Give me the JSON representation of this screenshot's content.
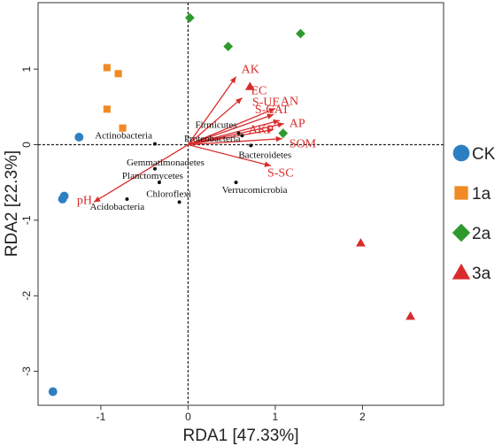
{
  "colors": {
    "CK": "#2e7fc2",
    "1a": "#f08a24",
    "2a": "#2e9a2e",
    "3a": "#d92b2b",
    "arrow": "#d92b2b",
    "species": "#111111"
  },
  "chart_data": {
    "type": "scatter",
    "title": "",
    "xlabel": "RDA1  [47.33%]",
    "ylabel": "RDA2  [22.3%]",
    "xlim": [
      -1.72,
      2.93
    ],
    "ylim": [
      -3.45,
      1.88
    ],
    "xticks": [
      -1,
      0,
      1,
      2
    ],
    "yticks": [
      -3,
      -2,
      -1,
      0,
      1
    ],
    "grid": false,
    "reference_lines": [
      "x=0",
      "y=0"
    ],
    "legend_position": "right",
    "samples": [
      {
        "name": "CK",
        "marker": "circle",
        "points": [
          [
            -1.25,
            0.1
          ],
          [
            -1.42,
            -0.68
          ],
          [
            -1.44,
            -0.72
          ],
          [
            -1.55,
            -3.27
          ]
        ]
      },
      {
        "name": "1a",
        "marker": "square",
        "points": [
          [
            -0.93,
            1.02
          ],
          [
            -0.8,
            0.94
          ],
          [
            -0.93,
            0.47
          ],
          [
            -0.75,
            0.22
          ]
        ]
      },
      {
        "name": "2a",
        "marker": "diamond",
        "points": [
          [
            0.02,
            1.68
          ],
          [
            0.46,
            1.3
          ],
          [
            1.29,
            1.47
          ],
          [
            1.09,
            0.15
          ]
        ]
      },
      {
        "name": "3a",
        "marker": "triangle",
        "points": [
          [
            1.98,
            -1.3
          ],
          [
            2.55,
            -2.27
          ],
          [
            0.71,
            0.77
          ]
        ]
      }
    ],
    "env_vectors": [
      {
        "label": "AK",
        "x": 0.55,
        "y": 0.9
      },
      {
        "label": "EC",
        "x": 0.62,
        "y": 0.62
      },
      {
        "label": "S-UE",
        "x": 0.98,
        "y": 0.4
      },
      {
        "label": "AN",
        "x": 1.0,
        "y": 0.48
      },
      {
        "label": "S-CAT",
        "x": 1.05,
        "y": 0.32
      },
      {
        "label": "AP",
        "x": 1.1,
        "y": 0.28
      },
      {
        "label": "AKP",
        "x": 0.98,
        "y": 0.2
      },
      {
        "label": "SOM",
        "x": 1.08,
        "y": 0.08
      },
      {
        "label": "S-SC",
        "x": 0.95,
        "y": -0.28
      },
      {
        "label": "pH",
        "x": -1.08,
        "y": -0.76
      }
    ],
    "species": [
      {
        "label": "Actinobacteria",
        "x": -0.38,
        "y": 0.01
      },
      {
        "label": "Firmicutes",
        "x": 0.58,
        "y": 0.15
      },
      {
        "label": "Proteobacteria",
        "x": 0.62,
        "y": 0.12
      },
      {
        "label": "Bacteroidetes",
        "x": 0.72,
        "y": -0.01
      },
      {
        "label": "Gemmatimonadetes",
        "x": -0.38,
        "y": -0.32
      },
      {
        "label": "Planctomycetes",
        "x": -0.33,
        "y": -0.5
      },
      {
        "label": "Verrucomicrobia",
        "x": 0.55,
        "y": -0.5
      },
      {
        "label": "Chloroflexi",
        "x": -0.1,
        "y": -0.76
      },
      {
        "label": "Acidobacteria",
        "x": -0.7,
        "y": -0.72
      }
    ],
    "legend": [
      "CK",
      "1a",
      "2a",
      "3a"
    ]
  }
}
